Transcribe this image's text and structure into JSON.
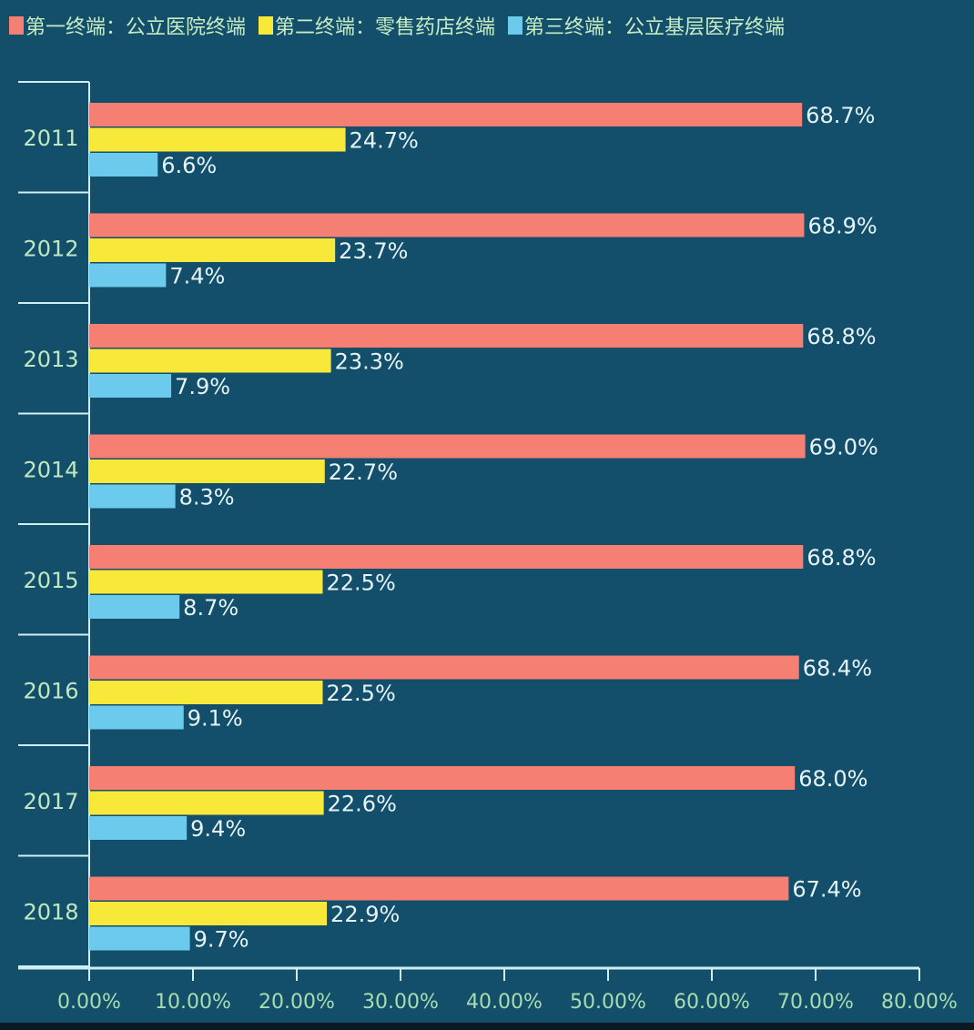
{
  "chart_data": {
    "type": "bar",
    "orientation": "horizontal",
    "categories": [
      "2011",
      "2012",
      "2013",
      "2014",
      "2015",
      "2016",
      "2017",
      "2018"
    ],
    "series": [
      {
        "name": "第一终端：公立医院终端",
        "color": "#f47f72",
        "values": [
          68.7,
          68.9,
          68.8,
          69.0,
          68.8,
          68.4,
          68.0,
          67.4
        ],
        "labels": [
          "68.7%",
          "68.9%",
          "68.8%",
          "69.0%",
          "68.8%",
          "68.4%",
          "68.0%",
          "67.4%"
        ]
      },
      {
        "name": "第二终端：零售药店终端",
        "color": "#f8e83a",
        "values": [
          24.7,
          23.7,
          23.3,
          22.7,
          22.5,
          22.5,
          22.6,
          22.9
        ],
        "labels": [
          "24.7%",
          "23.7%",
          "23.3%",
          "22.7%",
          "22.5%",
          "22.5%",
          "22.6%",
          "22.9%"
        ]
      },
      {
        "name": "第三终端：公立基层医疗终端",
        "color": "#6ccbec",
        "values": [
          6.6,
          7.4,
          7.9,
          8.3,
          8.7,
          9.1,
          9.4,
          9.7
        ],
        "labels": [
          "6.6%",
          "7.4%",
          "7.9%",
          "8.3%",
          "8.7%",
          "9.1%",
          "9.4%",
          "9.7%"
        ]
      }
    ],
    "xlim": [
      0,
      80
    ],
    "xticks": [
      "0.00%",
      "10.00%",
      "20.00%",
      "30.00%",
      "40.00%",
      "50.00%",
      "60.00%",
      "70.00%",
      "80.00%"
    ],
    "legend_position": "top",
    "grid": false,
    "background": "#134f6b",
    "axis_color": "#cfeef4"
  }
}
